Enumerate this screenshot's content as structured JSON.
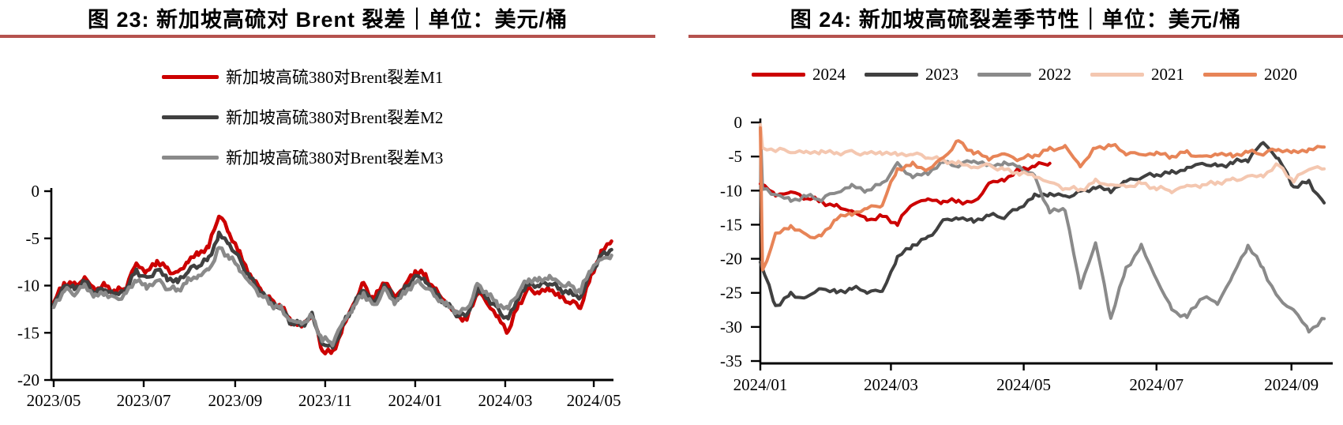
{
  "left_chart": {
    "title": "图 23: 新加坡高硫对 Brent 裂差｜单位：美元/桶"
  },
  "right_chart": {
    "title": "图 24: 新加坡高硫裂差季节性｜单位：美元/桶"
  },
  "accent_color": "#b5524e",
  "chart_data": [
    {
      "type": "line",
      "title": "新加坡高硫对 Brent 裂差",
      "unit": "美元/桶",
      "legend_position": "top-center-stacked",
      "grid": false,
      "ylim": [
        -20,
        0
      ],
      "y_ticks": [
        {
          "label": "0",
          "value": 0
        },
        {
          "label": "-5",
          "value": -5
        },
        {
          "label": "-10",
          "value": -10
        },
        {
          "label": "-15",
          "value": -15
        },
        {
          "label": "-20",
          "value": -20
        }
      ],
      "x_ticks": [
        {
          "label": "2023/05",
          "day": 0
        },
        {
          "label": "2023/07",
          "day": 61
        },
        {
          "label": "2023/09",
          "day": 123
        },
        {
          "label": "2023/11",
          "day": 184
        },
        {
          "label": "2024/01",
          "day": 245
        },
        {
          "label": "2024/03",
          "day": 306
        },
        {
          "label": "2024/05",
          "day": 366
        }
      ],
      "series": [
        {
          "name": "新加坡高硫380对Brent裂差M1",
          "color": "#cc0000",
          "x_start": 0,
          "x_step_days": 7,
          "values": [
            -11.8,
            -9.7,
            -10.0,
            -9.3,
            -10.4,
            -10.0,
            -10.7,
            -10.1,
            -7.6,
            -8.6,
            -7.4,
            -8.3,
            -8.8,
            -7.4,
            -6.6,
            -5.9,
            -2.4,
            -4.4,
            -6.6,
            -8.9,
            -10.4,
            -11.6,
            -12.2,
            -13.8,
            -14.3,
            -13.0,
            -16.8,
            -17.2,
            -14.5,
            -12.0,
            -9.8,
            -11.6,
            -9.4,
            -11.2,
            -10.0,
            -8.4,
            -9.0,
            -10.6,
            -11.8,
            -13.2,
            -13.6,
            -10.6,
            -11.8,
            -13.4,
            -14.9,
            -12.0,
            -10.4,
            -10.8,
            -10.3,
            -11.2,
            -11.7,
            -12.2,
            -9.1,
            -6.5,
            -5.3
          ]
        },
        {
          "name": "新加坡高硫380对Brent裂差M2",
          "color": "#404040",
          "x_start": 0,
          "x_step_days": 7,
          "values": [
            -12.0,
            -10.0,
            -10.3,
            -9.6,
            -10.7,
            -10.3,
            -11.0,
            -10.4,
            -8.4,
            -9.4,
            -8.3,
            -9.2,
            -9.6,
            -8.4,
            -7.8,
            -7.2,
            -4.6,
            -5.6,
            -7.3,
            -9.2,
            -10.6,
            -11.7,
            -12.4,
            -13.9,
            -14.2,
            -13.2,
            -16.2,
            -16.6,
            -14.2,
            -12.1,
            -10.3,
            -11.9,
            -9.9,
            -11.5,
            -10.4,
            -9.0,
            -9.5,
            -10.9,
            -11.9,
            -13.0,
            -13.2,
            -10.4,
            -11.3,
            -12.6,
            -13.6,
            -11.2,
            -9.8,
            -10.0,
            -9.6,
            -10.4,
            -10.8,
            -11.3,
            -8.6,
            -6.9,
            -6.2
          ]
        },
        {
          "name": "新加坡高硫380对Brent裂差M3",
          "color": "#8a8a8a",
          "x_start": 0,
          "x_step_days": 7,
          "values": [
            -12.3,
            -10.4,
            -10.8,
            -10.0,
            -11.1,
            -10.8,
            -11.5,
            -10.9,
            -9.3,
            -10.2,
            -9.4,
            -10.2,
            -10.5,
            -9.5,
            -9.0,
            -8.4,
            -6.1,
            -6.9,
            -8.2,
            -9.7,
            -10.9,
            -11.9,
            -12.5,
            -13.8,
            -14.0,
            -13.3,
            -15.7,
            -16.0,
            -13.9,
            -12.3,
            -10.8,
            -12.3,
            -10.4,
            -11.8,
            -10.8,
            -9.6,
            -10.0,
            -11.2,
            -12.0,
            -12.8,
            -12.6,
            -10.0,
            -10.8,
            -12.0,
            -12.4,
            -10.6,
            -9.3,
            -9.5,
            -9.1,
            -9.8,
            -10.1,
            -10.6,
            -8.2,
            -7.2,
            -6.8
          ]
        }
      ]
    },
    {
      "type": "line",
      "title": "新加坡高硫裂差季节性",
      "unit": "美元/桶",
      "legend_position": "top-row",
      "grid": false,
      "ylim": [
        -35,
        0
      ],
      "y_ticks": [
        {
          "label": "0",
          "value": 0
        },
        {
          "label": "-5",
          "value": -5
        },
        {
          "label": "-10",
          "value": -10
        },
        {
          "label": "-15",
          "value": -15
        },
        {
          "label": "-20",
          "value": -20
        },
        {
          "label": "-25",
          "value": -25
        },
        {
          "label": "-30",
          "value": -30
        },
        {
          "label": "-35",
          "value": -35
        }
      ],
      "x_ticks": [
        {
          "label": "2024/01",
          "day": 0
        },
        {
          "label": "2024/03",
          "day": 60
        },
        {
          "label": "2024/05",
          "day": 121
        },
        {
          "label": "2024/07",
          "day": 182
        },
        {
          "label": "2024/09",
          "day": 244
        }
      ],
      "series": [
        {
          "name": "2024",
          "color": "#cc0000",
          "x_start": 0,
          "x_step_days": 7,
          "values": [
            -9.0,
            -10.6,
            -10.2,
            -11.0,
            -11.6,
            -12.4,
            -13.0,
            -14.3,
            -13.8,
            -14.8,
            -11.8,
            -11.3,
            -11.6,
            -11.5,
            -11.9,
            -9.0,
            -8.4,
            -7.0,
            -6.3,
            -6.0
          ]
        },
        {
          "name": "2023",
          "color": "#404040",
          "x_start": 0,
          "x_step_days": 7,
          "values": [
            -20.5,
            -26.9,
            -25.3,
            -25.8,
            -24.3,
            -25.0,
            -24.3,
            -24.7,
            -24.8,
            -19.8,
            -18.0,
            -17.0,
            -14.5,
            -14.0,
            -14.5,
            -13.6,
            -13.8,
            -12.5,
            -10.8,
            -10.5,
            -10.9,
            -10.3,
            -9.5,
            -10.0,
            -8.6,
            -8.0,
            -7.6,
            -7.4,
            -6.8,
            -6.0,
            -6.5,
            -5.9,
            -5.4,
            -2.9,
            -5.3,
            -9.4,
            -8.8,
            -11.8
          ]
        },
        {
          "name": "2022",
          "color": "#8a8a8a",
          "pre_points": [
            [
              0,
              -0.4
            ],
            [
              1,
              -9.8
            ]
          ],
          "x_start": 7,
          "x_step_days": 7,
          "values": [
            -10.5,
            -11.5,
            -10.8,
            -11.2,
            -10.2,
            -9.3,
            -10.0,
            -9.0,
            -6.2,
            -8.0,
            -7.4,
            -5.8,
            -6.3,
            -5.5,
            -6.4,
            -6.0,
            -6.5,
            -8.0,
            -13.2,
            -12.6,
            -24.2,
            -17.6,
            -28.6,
            -21.5,
            -18.2,
            -23.0,
            -27.5,
            -28.6,
            -25.5,
            -26.5,
            -22.5,
            -18.0,
            -21.5,
            -26.0,
            -27.5,
            -30.6,
            -28.8
          ]
        },
        {
          "name": "2021",
          "color": "#f4c7b0",
          "pre_points": [
            [
              0,
              -0.3
            ],
            [
              1,
              -3.8
            ]
          ],
          "x_start": 7,
          "x_step_days": 7,
          "values": [
            -4.0,
            -4.2,
            -4.4,
            -4.3,
            -4.5,
            -4.4,
            -4.6,
            -4.4,
            -4.7,
            -4.6,
            -5.0,
            -5.6,
            -6.0,
            -6.6,
            -6.3,
            -7.0,
            -7.4,
            -7.8,
            -8.8,
            -9.6,
            -9.9,
            -8.7,
            -9.2,
            -9.4,
            -9.0,
            -9.6,
            -10.0,
            -9.3,
            -9.2,
            -8.8,
            -8.5,
            -8.0,
            -7.8,
            -6.2,
            -8.6,
            -6.6,
            -6.8
          ]
        },
        {
          "name": "2020",
          "color": "#e78457",
          "pre_points": [
            [
              0,
              -0.8
            ],
            [
              1,
              -21.8
            ]
          ],
          "x_start": 7,
          "x_step_days": 7,
          "values": [
            -16.5,
            -15.2,
            -16.6,
            -16.8,
            -14.0,
            -13.4,
            -12.6,
            -12.0,
            -6.8,
            -6.2,
            -7.0,
            -5.2,
            -2.8,
            -4.4,
            -5.2,
            -4.6,
            -5.4,
            -4.8,
            -4.0,
            -3.6,
            -6.4,
            -3.8,
            -3.3,
            -4.4,
            -4.7,
            -4.5,
            -5.0,
            -4.4,
            -5.2,
            -4.6,
            -4.9,
            -4.3,
            -4.5,
            -3.9,
            -4.4,
            -4.0,
            -3.6
          ]
        }
      ]
    }
  ]
}
